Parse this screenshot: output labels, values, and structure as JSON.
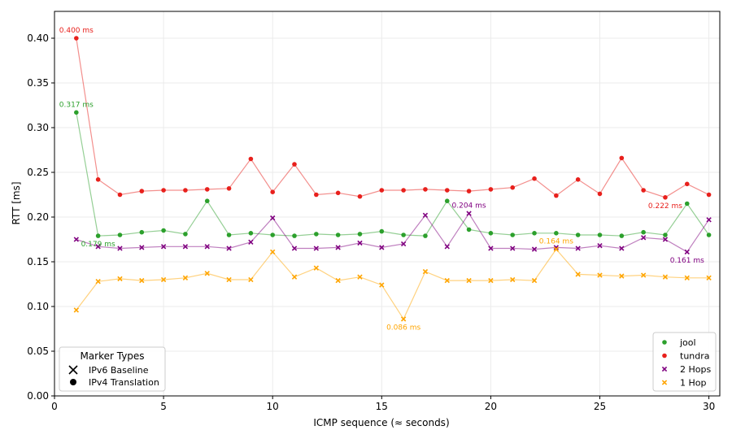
{
  "chart_data": {
    "type": "scatter",
    "xlabel": "ICMP sequence (≈ seconds)",
    "ylabel": "RTT [ms]",
    "xlim": [
      0,
      30.5
    ],
    "ylim": [
      0,
      0.43
    ],
    "xticks": [
      0,
      5,
      10,
      15,
      20,
      25,
      30
    ],
    "yticks": [
      "0.00",
      "0.05",
      "0.10",
      "0.15",
      "0.20",
      "0.25",
      "0.30",
      "0.35",
      "0.40"
    ],
    "grid": true,
    "x": [
      1,
      2,
      3,
      4,
      5,
      6,
      7,
      8,
      9,
      10,
      11,
      12,
      13,
      14,
      15,
      16,
      17,
      18,
      19,
      20,
      21,
      22,
      23,
      24,
      25,
      26,
      27,
      28,
      29,
      30
    ],
    "series": [
      {
        "name": "jool",
        "color": "#2ca02c",
        "marker": "circle",
        "values": [
          0.317,
          0.179,
          0.18,
          0.183,
          0.185,
          0.181,
          0.218,
          0.18,
          0.182,
          0.18,
          0.179,
          0.181,
          0.18,
          0.181,
          0.184,
          0.18,
          0.179,
          0.218,
          0.186,
          0.182,
          0.18,
          0.182,
          0.182,
          0.18,
          0.18,
          0.179,
          0.183,
          0.18,
          0.215,
          0.18
        ]
      },
      {
        "name": "tundra",
        "color": "#e8201c",
        "marker": "circle",
        "values": [
          0.4,
          0.242,
          0.225,
          0.229,
          0.23,
          0.23,
          0.231,
          0.232,
          0.265,
          0.228,
          0.259,
          0.225,
          0.227,
          0.223,
          0.23,
          0.23,
          0.231,
          0.23,
          0.229,
          0.231,
          0.233,
          0.243,
          0.224,
          0.242,
          0.226,
          0.266,
          0.23,
          0.222,
          0.237,
          0.225
        ]
      },
      {
        "name": "2 Hops",
        "color": "#800080",
        "marker": "x",
        "values": [
          0.175,
          0.167,
          0.165,
          0.166,
          0.167,
          0.167,
          0.167,
          0.165,
          0.172,
          0.199,
          0.165,
          0.165,
          0.166,
          0.171,
          0.166,
          0.17,
          0.202,
          0.167,
          0.204,
          0.165,
          0.165,
          0.164,
          0.166,
          0.165,
          0.168,
          0.165,
          0.177,
          0.175,
          0.161,
          0.197
        ]
      },
      {
        "name": "1 Hop",
        "color": "#ffa500",
        "marker": "x",
        "values": [
          0.096,
          0.128,
          0.131,
          0.129,
          0.13,
          0.132,
          0.137,
          0.13,
          0.13,
          0.161,
          0.133,
          0.143,
          0.129,
          0.133,
          0.124,
          0.086,
          0.139,
          0.129,
          0.129,
          0.129,
          0.13,
          0.129,
          0.164,
          0.136,
          0.135,
          0.134,
          0.135,
          0.133,
          0.132,
          0.132
        ]
      }
    ],
    "annotations": [
      {
        "text": "0.400 ms",
        "x": 1,
        "y": 0.4,
        "color": "#e8201c",
        "anchor": "above"
      },
      {
        "text": "0.317 ms",
        "x": 1,
        "y": 0.317,
        "color": "#2ca02c",
        "anchor": "above"
      },
      {
        "text": "0.179 ms",
        "x": 2,
        "y": 0.179,
        "color": "#2ca02c",
        "anchor": "below"
      },
      {
        "text": "0.204 ms",
        "x": 19,
        "y": 0.204,
        "color": "#800080",
        "anchor": "above"
      },
      {
        "text": "0.164 ms",
        "x": 23,
        "y": 0.164,
        "color": "#ffa500",
        "anchor": "above"
      },
      {
        "text": "0.086 ms",
        "x": 16,
        "y": 0.086,
        "color": "#ffa500",
        "anchor": "below"
      },
      {
        "text": "0.222 ms",
        "x": 28,
        "y": 0.222,
        "color": "#e8201c",
        "anchor": "below"
      },
      {
        "text": "0.161 ms",
        "x": 29,
        "y": 0.161,
        "color": "#800080",
        "anchor": "below"
      }
    ],
    "legend": {
      "placement": "lower right",
      "entries": [
        "jool",
        "tundra",
        "2 Hops",
        "1 Hop"
      ]
    },
    "marker_legend": {
      "placement": "lower left",
      "title": "Marker Types",
      "entries": [
        {
          "label": "IPv6 Baseline",
          "marker": "x"
        },
        {
          "label": "IPv4 Translation",
          "marker": "circle"
        }
      ]
    }
  }
}
